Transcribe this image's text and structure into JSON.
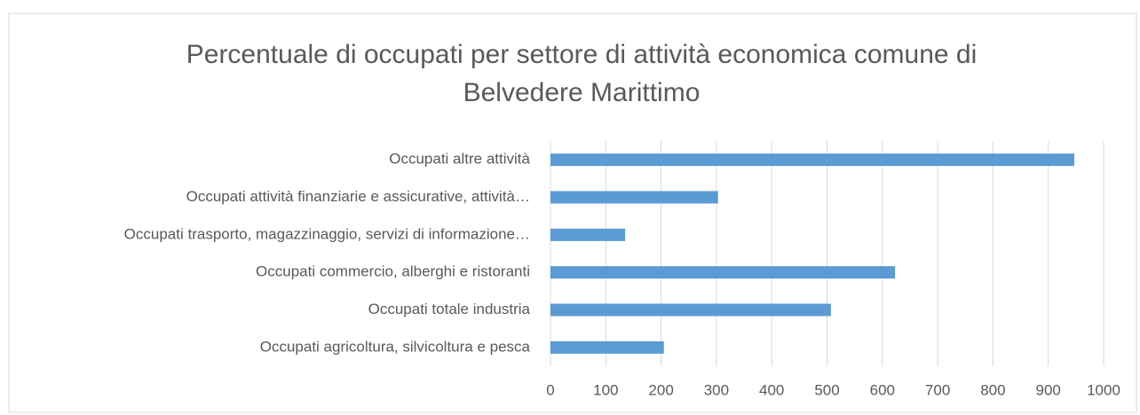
{
  "chart_data": {
    "type": "barh",
    "title": "Percentuale di occupati per settore di attività economica comune di Belvedere Marittimo",
    "categories": [
      "Occupati altre attività",
      "Occupati attività finanziarie e assicurative, attività…",
      "Occupati trasporto, magazzinaggio, servizi di informazione…",
      "Occupati commercio, alberghi e ristoranti",
      "Occupati totale industria",
      "Occupati agricoltura, silvicoltura e pesca"
    ],
    "values": [
      947,
      303,
      135,
      623,
      507,
      205
    ],
    "color": "#5b9bd5",
    "xlim": [
      0,
      1000
    ],
    "xticks": [
      0,
      100,
      200,
      300,
      400,
      500,
      600,
      700,
      800,
      900,
      1000
    ],
    "grid": true
  }
}
